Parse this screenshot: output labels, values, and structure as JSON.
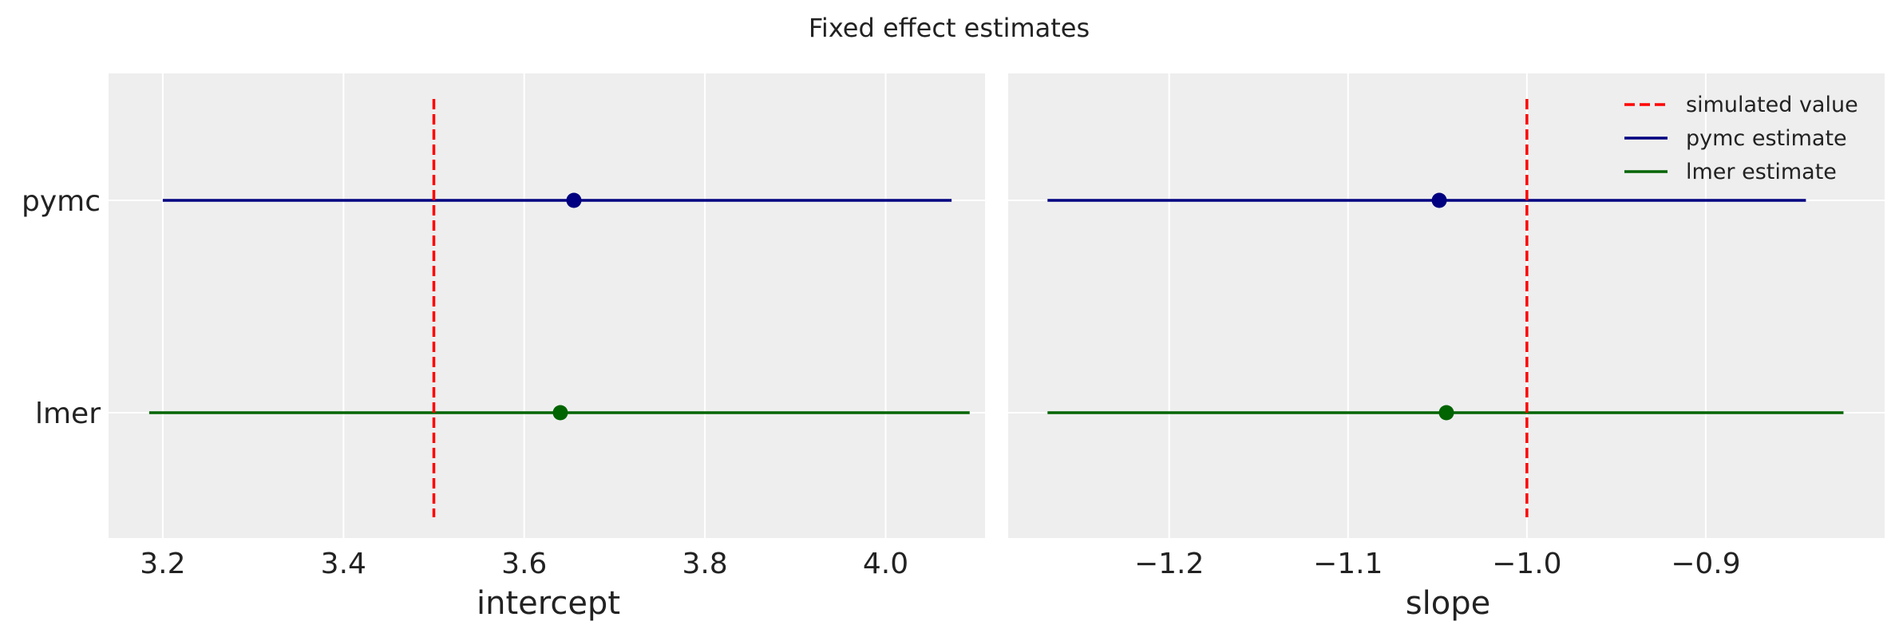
{
  "figure_title": "Fixed effect estimates",
  "chart_data": [
    {
      "type": "errorbar",
      "xlabel": "intercept",
      "ylabel": "",
      "categories": [
        "pymc",
        "lmer"
      ],
      "xlim": [
        3.14,
        4.11
      ],
      "xticks": [
        3.2,
        3.4,
        3.6,
        3.8,
        4.0
      ],
      "xtick_labels": [
        "3.2",
        "3.4",
        "3.6",
        "3.8",
        "4.0"
      ],
      "grid": true,
      "series": [
        {
          "category": "pymc",
          "estimate": 3.655,
          "lower": 3.2,
          "upper": 4.073,
          "color": "#000080"
        },
        {
          "category": "lmer",
          "estimate": 3.64,
          "lower": 3.185,
          "upper": 4.093,
          "color": "#006400"
        }
      ],
      "reference_line": {
        "x": 3.5,
        "color": "#ff0000",
        "style": "dashed"
      }
    },
    {
      "type": "errorbar",
      "xlabel": "slope",
      "ylabel": "",
      "categories": [
        "pymc",
        "lmer"
      ],
      "xlim": [
        -1.29,
        -0.8
      ],
      "xticks": [
        -1.2,
        -1.1,
        -1.0,
        -0.9
      ],
      "xtick_labels": [
        "−1.2",
        "−1.1",
        "−1.0",
        "−0.9"
      ],
      "grid": true,
      "series": [
        {
          "category": "pymc",
          "estimate": -1.049,
          "lower": -1.268,
          "upper": -0.844,
          "color": "#000080"
        },
        {
          "category": "lmer",
          "estimate": -1.045,
          "lower": -1.268,
          "upper": -0.823,
          "color": "#006400"
        }
      ],
      "reference_line": {
        "x": -1.0,
        "color": "#ff0000",
        "style": "dashed"
      },
      "legend": {
        "placement": "top-right",
        "entries": [
          {
            "label": "simulated value",
            "color": "#ff0000",
            "style": "dashed"
          },
          {
            "label": "pymc estimate",
            "color": "#000080",
            "style": "solid"
          },
          {
            "label": "lmer estimate",
            "color": "#006400",
            "style": "solid"
          }
        ]
      }
    }
  ]
}
